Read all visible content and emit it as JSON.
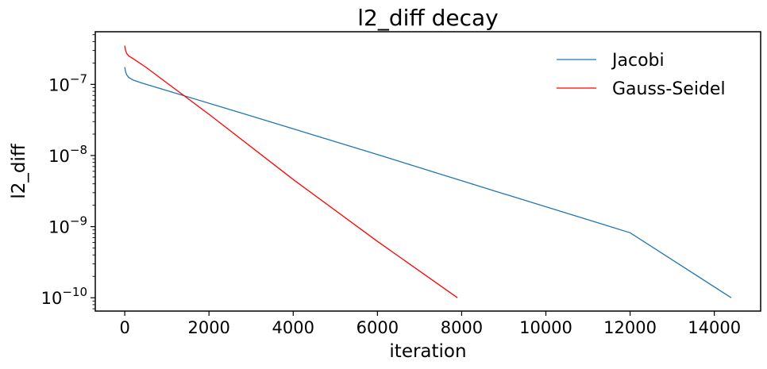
{
  "chart_data": {
    "type": "line",
    "title": "l2_diff decay",
    "xlabel": "iteration",
    "ylabel": "l2_diff",
    "xlim": [
      -700,
      15100
    ],
    "ylim": [
      6.5e-11,
      5.5e-07
    ],
    "yscale": "log",
    "grid": false,
    "legend": "top-right",
    "xticks": [
      0,
      2000,
      4000,
      6000,
      8000,
      10000,
      12000,
      14000
    ],
    "xtick_labels": [
      "0",
      "2000",
      "4000",
      "6000",
      "8000",
      "10000",
      "12000",
      "14000"
    ],
    "yticks": [
      {
        "value": 1e-07,
        "base": "10",
        "exp": "−7"
      },
      {
        "value": 1e-08,
        "base": "10",
        "exp": "−8"
      },
      {
        "value": 1e-09,
        "base": "10",
        "exp": "−9"
      },
      {
        "value": 1e-10,
        "base": "10",
        "exp": "−10"
      }
    ],
    "series": [
      {
        "name": "Jacobi",
        "color": "#1f77b4",
        "x": [
          0,
          20,
          50,
          100,
          200,
          400,
          1000,
          3000,
          6000,
          9000,
          12000,
          14400
        ],
        "y": [
          1.75e-07,
          1.5e-07,
          1.35e-07,
          1.25e-07,
          1.15e-07,
          1.05e-07,
          8.2e-08,
          3.6e-08,
          1.03e-08,
          2.9e-09,
          8.2e-10,
          1e-10
        ]
      },
      {
        "name": "Gauss-Seidel",
        "color": "#ff0000",
        "x": [
          0,
          20,
          50,
          100,
          200,
          500,
          1000,
          2000,
          4000,
          6000,
          7900
        ],
        "y": [
          3.5e-07,
          3e-07,
          2.7e-07,
          2.5e-07,
          2.3e-07,
          1.75e-07,
          1.05e-07,
          3.8e-08,
          4.6e-09,
          6.2e-10,
          1e-10
        ]
      }
    ]
  }
}
